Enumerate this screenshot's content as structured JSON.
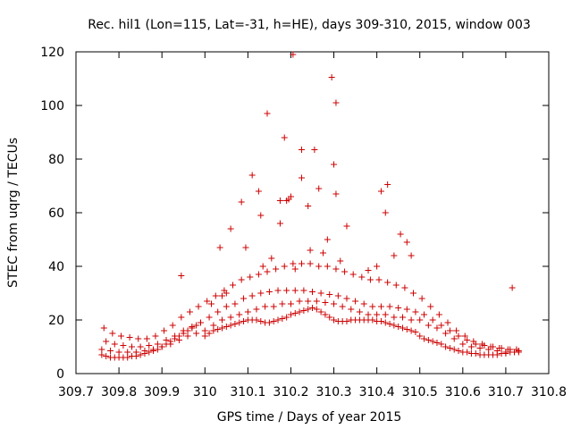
{
  "chart_data": {
    "type": "scatter",
    "title": "Rec. hil1 (Lon=115, Lat=-31, h=HE), days 309-310, 2015, window 003",
    "xlabel": "GPS time / Days of year 2015",
    "ylabel": "STEC from uqrg / TECUs",
    "xlim": [
      309.7,
      310.8
    ],
    "ylim": [
      0,
      120
    ],
    "xticks": [
      309.7,
      309.8,
      309.9,
      310,
      310.1,
      310.2,
      310.3,
      310.4,
      310.5,
      310.6,
      310.7,
      310.8
    ],
    "xtick_labels": [
      "309.7",
      "309.8",
      "309.9",
      "310",
      "310.1",
      "310.2",
      "310.3",
      "310.4",
      "310.5",
      "310.6",
      "310.7",
      "310.8"
    ],
    "yticks": [
      0,
      20,
      40,
      60,
      80,
      100,
      120
    ],
    "ytick_labels": [
      "0",
      "20",
      "40",
      "60",
      "80",
      "100",
      "120"
    ],
    "marker": "plus",
    "color": "#cc0000",
    "series": [
      {
        "name": "STEC",
        "x": [
          309.76,
          309.77,
          309.78,
          309.79,
          309.8,
          309.81,
          309.82,
          309.83,
          309.84,
          309.85,
          309.86,
          309.87,
          309.88,
          309.89,
          309.9,
          309.91,
          309.92,
          309.93,
          309.94,
          309.95,
          309.96,
          309.97,
          309.98,
          309.99,
          310.0,
          310.01,
          310.02,
          310.03,
          310.04,
          310.05,
          310.06,
          310.07,
          310.08,
          310.09,
          310.1,
          310.11,
          310.12,
          310.13,
          310.14,
          310.15,
          310.16,
          310.17,
          310.18,
          310.19,
          310.2,
          310.21,
          310.22,
          310.23,
          310.24,
          310.25,
          310.26,
          310.27,
          310.28,
          310.29,
          310.3,
          310.31,
          310.32,
          310.33,
          310.34,
          310.35,
          310.36,
          310.37,
          310.38,
          310.39,
          310.4,
          310.41,
          310.42,
          310.43,
          310.44,
          310.45,
          310.46,
          310.47,
          310.48,
          310.49,
          310.5,
          310.51,
          310.52,
          310.53,
          310.54,
          310.55,
          310.56,
          310.57,
          310.58,
          310.59,
          310.6,
          310.61,
          310.62,
          310.63,
          310.64,
          310.65,
          310.66,
          310.67,
          310.68,
          310.69,
          310.7,
          310.71,
          310.72,
          310.73,
          309.76,
          309.78,
          309.8,
          309.82,
          309.84,
          309.86,
          309.88,
          309.9,
          309.92,
          309.94,
          309.96,
          309.98,
          310.0,
          310.02,
          310.04,
          310.06,
          310.08,
          310.1,
          310.12,
          310.14,
          310.16,
          310.18,
          310.2,
          310.22,
          310.24,
          310.26,
          310.28,
          310.3,
          310.32,
          310.34,
          310.36,
          310.38,
          310.4,
          310.42,
          310.44,
          310.46,
          310.48,
          310.5,
          310.52,
          310.54,
          310.56,
          310.58,
          310.6,
          310.62,
          310.64,
          310.66,
          310.68,
          310.7,
          310.72,
          309.77,
          309.79,
          309.81,
          309.83,
          309.85,
          309.87,
          309.89,
          309.91,
          309.93,
          309.95,
          309.97,
          309.99,
          310.01,
          310.03,
          310.05,
          310.07,
          310.09,
          310.11,
          310.13,
          310.15,
          310.17,
          310.19,
          310.21,
          310.23,
          310.25,
          310.27,
          310.29,
          310.31,
          310.33,
          310.35,
          310.37,
          310.39,
          310.41,
          310.43,
          310.45,
          310.47,
          310.49,
          310.51,
          310.53,
          310.55,
          310.57,
          310.59,
          310.61,
          310.63,
          310.65,
          310.67,
          310.69,
          310.71,
          310.73,
          309.765,
          309.785,
          309.805,
          309.825,
          309.845,
          309.865,
          309.885,
          309.905,
          309.925,
          309.945,
          309.965,
          309.985,
          310.005,
          310.025,
          310.045,
          310.065,
          310.085,
          310.105,
          310.125,
          310.145,
          310.165,
          310.185,
          310.205,
          310.225,
          310.245,
          310.265,
          310.285,
          310.305,
          310.325,
          310.345,
          310.365,
          310.385,
          310.405,
          310.425,
          310.445,
          310.465,
          310.485,
          310.505,
          310.525,
          310.545,
          310.565,
          310.585,
          310.605,
          310.625,
          310.645,
          310.665,
          310.685,
          310.705,
          310.725,
          310.205,
          310.295,
          310.305,
          310.145,
          310.185,
          310.225,
          310.255,
          310.3,
          310.11,
          310.125,
          310.195,
          310.24,
          310.265,
          310.175,
          310.19,
          310.2,
          310.225,
          310.305,
          310.33,
          310.41,
          310.425,
          310.42,
          310.455,
          310.06,
          310.085,
          310.13,
          310.175,
          310.285,
          310.095,
          310.47,
          310.48,
          309.945,
          310.035,
          310.04,
          310.245,
          310.275,
          310.315,
          310.715,
          310.015,
          310.05,
          310.135,
          310.155,
          310.21,
          310.38,
          310.4,
          310.44
        ],
        "y": [
          7,
          6.5,
          6,
          6,
          6,
          6,
          6,
          6.5,
          6.5,
          7,
          7.5,
          8,
          8.5,
          9,
          10,
          11,
          12,
          13,
          14,
          15,
          16,
          17,
          18,
          19,
          14,
          15,
          16,
          16.5,
          17,
          17.5,
          18,
          18.5,
          19,
          19.5,
          20,
          20,
          20,
          19.5,
          19,
          19,
          19.5,
          20,
          20.5,
          21,
          22,
          22.5,
          23,
          23.5,
          24,
          24.5,
          24,
          23,
          22,
          21,
          20,
          19.5,
          19.5,
          19.5,
          20,
          20,
          20,
          20,
          20,
          20,
          19.5,
          19.5,
          19,
          18.5,
          18,
          17.5,
          17,
          16.5,
          16,
          15.5,
          14,
          13,
          12.5,
          12,
          11.5,
          11,
          10,
          9.5,
          9,
          8.5,
          8,
          8,
          7.5,
          7.5,
          7,
          7,
          7,
          7,
          7,
          7.5,
          7.5,
          8,
          8,
          8,
          9,
          8.5,
          8,
          8,
          8,
          8.5,
          9,
          10,
          11,
          12.5,
          14,
          15,
          16,
          18,
          20,
          21,
          22,
          23,
          24,
          25,
          25,
          26,
          26,
          27,
          27,
          27,
          26.5,
          26,
          25,
          24,
          23,
          22,
          22,
          22,
          21,
          21,
          20,
          20,
          18,
          17,
          15,
          13,
          11,
          10,
          9.5,
          9,
          8.5,
          8,
          8,
          12,
          11,
          10.5,
          10,
          10,
          10.5,
          11,
          12.5,
          14,
          16,
          17.5,
          19,
          21,
          23,
          25,
          26,
          28,
          29,
          30,
          30.5,
          31,
          31,
          31,
          31,
          30.5,
          30,
          29.5,
          29,
          28,
          27,
          26,
          25,
          25,
          25,
          24.5,
          24,
          23,
          22,
          20,
          18,
          16,
          14,
          12.5,
          11,
          10.5,
          10,
          9.5,
          9,
          8.5,
          17,
          15,
          14,
          13.5,
          13,
          13,
          14,
          16,
          18,
          21,
          23,
          25,
          27,
          29,
          31,
          33,
          35,
          36,
          37,
          38,
          39,
          40,
          41,
          41,
          41,
          40,
          40,
          39,
          38,
          37,
          36,
          35,
          35,
          34,
          33,
          32,
          30,
          28,
          25,
          22,
          19,
          16,
          14,
          12,
          11,
          10,
          9.5,
          9,
          9,
          119,
          110.5,
          101,
          97,
          88,
          83.5,
          83.5,
          78,
          74,
          68,
          65,
          62.5,
          69,
          64.5,
          64.5,
          66,
          73,
          67,
          55,
          68,
          70.5,
          60,
          52,
          54,
          64,
          59,
          56,
          50,
          47,
          49,
          44,
          36.5,
          47,
          29,
          46,
          45,
          42,
          32,
          26,
          30,
          40,
          43,
          39,
          38.5,
          40,
          44
        ]
      }
    ]
  }
}
